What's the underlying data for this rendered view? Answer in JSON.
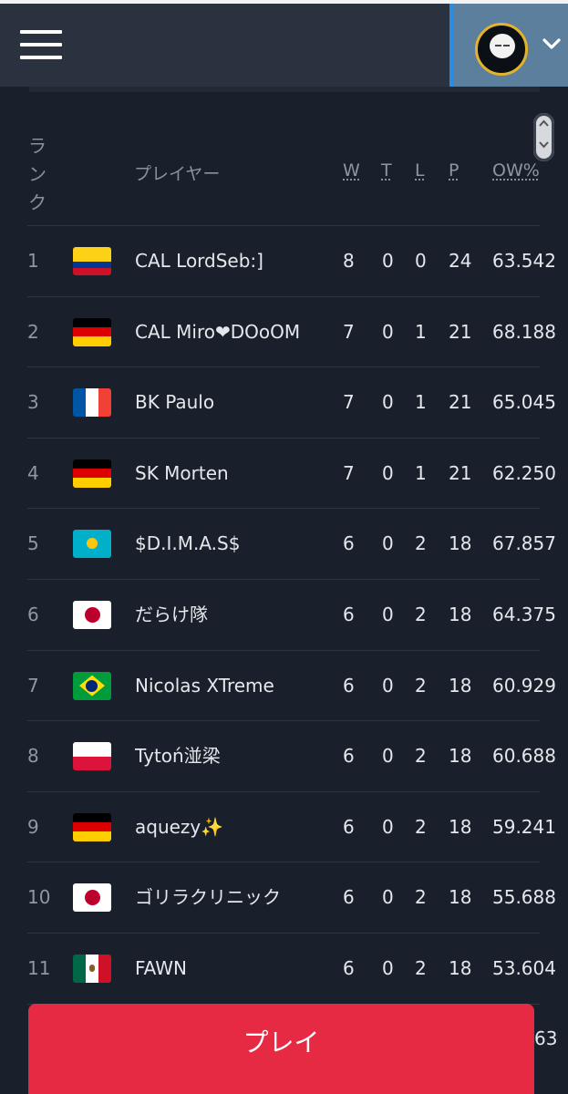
{
  "header": {
    "menu_icon": "hamburger-menu-icon",
    "avatar_icon": "ghost-avatar-icon",
    "dropdown_icon": "chevron-down-icon"
  },
  "table": {
    "columns": {
      "rank": "ランク",
      "player": "プレイヤー",
      "w": "W",
      "t": "T",
      "l": "L",
      "p": "P",
      "ow": "OW%"
    },
    "rows": [
      {
        "rank": "1",
        "flag": "colombia",
        "name": "CAL LordSeb:]",
        "w": "8",
        "t": "0",
        "l": "0",
        "p": "24",
        "ow": "63.542"
      },
      {
        "rank": "2",
        "flag": "germany",
        "name": "CAL Miro❤DOoOM",
        "w": "7",
        "t": "0",
        "l": "1",
        "p": "21",
        "ow": "68.188"
      },
      {
        "rank": "3",
        "flag": "france",
        "name": "BK Paulo",
        "w": "7",
        "t": "0",
        "l": "1",
        "p": "21",
        "ow": "65.045"
      },
      {
        "rank": "4",
        "flag": "germany",
        "name": "SK Morten",
        "w": "7",
        "t": "0",
        "l": "1",
        "p": "21",
        "ow": "62.250"
      },
      {
        "rank": "5",
        "flag": "kazakhstan",
        "name": "$D.I.M.A.S$",
        "w": "6",
        "t": "0",
        "l": "2",
        "p": "18",
        "ow": "67.857"
      },
      {
        "rank": "6",
        "flag": "japan",
        "name": "だらけ隊",
        "w": "6",
        "t": "0",
        "l": "2",
        "p": "18",
        "ow": "64.375"
      },
      {
        "rank": "7",
        "flag": "brazil",
        "name": "Nicolas XTreme",
        "w": "6",
        "t": "0",
        "l": "2",
        "p": "18",
        "ow": "60.929"
      },
      {
        "rank": "8",
        "flag": "poland",
        "name": "Tytoń湴梁",
        "w": "6",
        "t": "0",
        "l": "2",
        "p": "18",
        "ow": "60.688"
      },
      {
        "rank": "9",
        "flag": "germany",
        "name": "aquezy✨",
        "w": "6",
        "t": "0",
        "l": "2",
        "p": "18",
        "ow": "59.241"
      },
      {
        "rank": "10",
        "flag": "japan",
        "name": "ゴリラクリニック",
        "w": "6",
        "t": "0",
        "l": "2",
        "p": "18",
        "ow": "55.688"
      },
      {
        "rank": "11",
        "flag": "mexico",
        "name": "FAWN",
        "w": "6",
        "t": "0",
        "l": "2",
        "p": "18",
        "ow": "53.604"
      }
    ],
    "partial_next_ow": "63"
  },
  "play_button": {
    "label": "プレイ"
  },
  "colors": {
    "accent": "#e72a44",
    "background": "#1a202b",
    "header": "#2a3240"
  }
}
